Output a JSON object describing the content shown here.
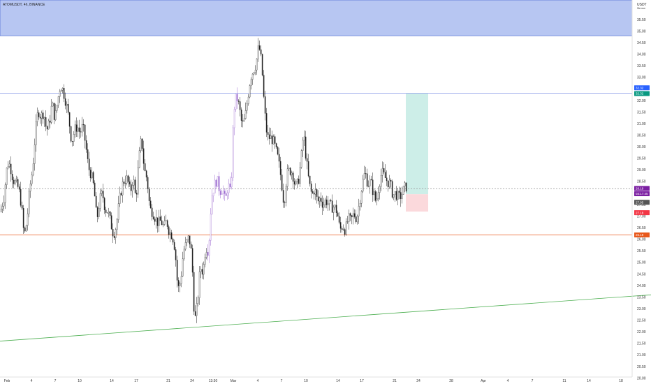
{
  "header": {
    "symbol": "ATOMUSDT, 4h, BINANCE",
    "currency": "USDT",
    "currency_note": "Ste.uso"
  },
  "chart_data": {
    "type": "candlestick",
    "title": "ATOMUSDT, 4h, BINANCE",
    "y_axis": {
      "currency": "USDT",
      "tick_labels": [
        "35.50",
        "35.00",
        "34.50",
        "34.00",
        "33.50",
        "33.00",
        "32.50",
        "32.00",
        "31.50",
        "31.00",
        "30.50",
        "30.00",
        "29.50",
        "29.00",
        "28.50",
        "28.00",
        "27.50",
        "27.00",
        "26.50",
        "26.00",
        "25.50",
        "25.00",
        "24.50",
        "24.00",
        "23.50",
        "23.00",
        "22.50",
        "22.00",
        "21.50",
        "21.00",
        "20.50",
        "20.00"
      ],
      "tick_values": [
        35.5,
        35.0,
        34.5,
        34.0,
        33.5,
        33.0,
        32.5,
        32.0,
        31.5,
        31.0,
        30.5,
        30.0,
        29.5,
        29.0,
        28.5,
        28.0,
        27.5,
        27.0,
        26.5,
        26.0,
        25.5,
        25.0,
        24.5,
        24.0,
        23.5,
        23.0,
        22.5,
        22.0,
        21.5,
        21.0,
        20.5,
        20.0
      ],
      "range": [
        19.7,
        36.2
      ]
    },
    "x_axis": {
      "tick_labels": [
        "Feb",
        "4",
        "7",
        "10",
        "14",
        "17",
        "21",
        "24",
        "13:30",
        "Mar",
        "4",
        "7",
        "10",
        "14",
        "17",
        "21",
        "24",
        "28",
        "Apr",
        "4",
        "7",
        "11",
        "14",
        "18"
      ],
      "range": [
        0,
        932
      ]
    },
    "zones": {
      "resistance_top": 34.8,
      "resistance_bottom": 36.2,
      "resistance_color": "#b7c6f2",
      "long_position": {
        "entry": 27.95,
        "take_profit": 32.3,
        "stop_loss": 27.2,
        "profit_color": "#cdeee8",
        "loss_color": "#fbd9dc"
      }
    },
    "horizontal_lines": [
      {
        "name": "blue-level",
        "value": 32.32,
        "color": "#8093e6"
      },
      {
        "name": "current-price-line",
        "value": 28.19,
        "color": "#a0a0a0",
        "dashed": true
      },
      {
        "name": "orange-support",
        "value": 26.19,
        "color": "#e8581b"
      }
    ],
    "trendline": {
      "name": "green-trendline",
      "from": [
        0,
        21.6
      ],
      "to": [
        932,
        23.6
      ],
      "color": "#4caf50"
    },
    "price_badges": [
      {
        "label": "32.32",
        "value": 32.55,
        "color": "#2962ff"
      },
      {
        "label": "32.32",
        "value": 32.3,
        "color": "#089981"
      },
      {
        "label": "28.19",
        "value": 28.2,
        "color": "#7b1fa2"
      },
      {
        "label": "03:17:45",
        "value": 27.97,
        "color": "#7b1fa2"
      },
      {
        "label": "27.95",
        "value": 27.6,
        "color": "#555555"
      },
      {
        "label": "27.18",
        "value": 27.15,
        "color": "#f23645"
      },
      {
        "label": "26.19",
        "value": 26.19,
        "color": "#e8581b"
      }
    ],
    "candle_color": "#222222",
    "candle_up_color": "#ffffff",
    "highlight_color": "#9c6bd0",
    "price_path": [
      [
        0,
        27.2
      ],
      [
        5,
        27.8
      ],
      [
        10,
        29.3
      ],
      [
        14,
        29.2
      ],
      [
        18,
        28.6
      ],
      [
        22,
        28.4
      ],
      [
        26,
        28.2
      ],
      [
        30,
        27.5
      ],
      [
        34,
        26.1
      ],
      [
        38,
        26.8
      ],
      [
        42,
        28.2
      ],
      [
        46,
        29.0
      ],
      [
        50,
        30.6
      ],
      [
        54,
        31.6
      ],
      [
        58,
        31.3
      ],
      [
        62,
        31.5
      ],
      [
        66,
        30.7
      ],
      [
        70,
        31.0
      ],
      [
        74,
        31.9
      ],
      [
        78,
        31.2
      ],
      [
        82,
        32.0
      ],
      [
        86,
        32.7
      ],
      [
        90,
        32.4
      ],
      [
        94,
        31.9
      ],
      [
        98,
        31.2
      ],
      [
        102,
        30.2
      ],
      [
        106,
        30.7
      ],
      [
        110,
        30.9
      ],
      [
        114,
        30.6
      ],
      [
        118,
        30.9
      ],
      [
        122,
        30.1
      ],
      [
        126,
        29.1
      ],
      [
        130,
        28.8
      ],
      [
        134,
        28.2
      ],
      [
        138,
        26.8
      ],
      [
        142,
        27.7
      ],
      [
        146,
        28.0
      ],
      [
        150,
        27.3
      ],
      [
        154,
        27.2
      ],
      [
        158,
        26.7
      ],
      [
        162,
        26.2
      ],
      [
        166,
        26.6
      ],
      [
        170,
        27.6
      ],
      [
        174,
        28.3
      ],
      [
        178,
        28.6
      ],
      [
        182,
        28.6
      ],
      [
        186,
        28.0
      ],
      [
        190,
        28.7
      ],
      [
        194,
        27.7
      ],
      [
        198,
        29.4
      ],
      [
        202,
        30.4
      ],
      [
        206,
        29.0
      ],
      [
        210,
        28.6
      ],
      [
        214,
        27.3
      ],
      [
        218,
        27.2
      ],
      [
        222,
        26.9
      ],
      [
        226,
        26.7
      ],
      [
        230,
        26.8
      ],
      [
        234,
        26.5
      ],
      [
        238,
        26.8
      ],
      [
        242,
        26.3
      ],
      [
        246,
        26.2
      ],
      [
        250,
        25.6
      ],
      [
        254,
        23.8
      ],
      [
        258,
        24.2
      ],
      [
        262,
        25.5
      ],
      [
        266,
        25.8
      ],
      [
        270,
        26.1
      ],
      [
        274,
        25.3
      ],
      [
        278,
        22.4
      ],
      [
        282,
        23.2
      ],
      [
        286,
        24.8
      ],
      [
        290,
        24.6
      ],
      [
        294,
        25.7
      ],
      [
        298,
        25.5
      ],
      [
        302,
        27.8
      ],
      [
        306,
        28.3
      ],
      [
        310,
        28.6
      ],
      [
        314,
        28.1
      ],
      [
        318,
        28.2
      ],
      [
        322,
        27.6
      ],
      [
        326,
        28.4
      ],
      [
        330,
        27.9
      ],
      [
        334,
        31.6
      ],
      [
        338,
        32.2
      ],
      [
        342,
        31.7
      ],
      [
        346,
        30.9
      ],
      [
        350,
        31.2
      ],
      [
        354,
        32.1
      ],
      [
        358,
        33.0
      ],
      [
        362,
        33.3
      ],
      [
        366,
        33.6
      ],
      [
        370,
        34.4
      ],
      [
        374,
        33.6
      ],
      [
        378,
        31.6
      ],
      [
        382,
        30.4
      ],
      [
        386,
        30.4
      ],
      [
        390,
        30.3
      ],
      [
        394,
        29.9
      ],
      [
        398,
        29.4
      ],
      [
        402,
        28.6
      ],
      [
        406,
        27.5
      ],
      [
        410,
        28.8
      ],
      [
        414,
        29.0
      ],
      [
        418,
        28.9
      ],
      [
        422,
        28.3
      ],
      [
        426,
        28.4
      ],
      [
        430,
        29.3
      ],
      [
        434,
        30.6
      ],
      [
        438,
        29.4
      ],
      [
        442,
        28.4
      ],
      [
        446,
        27.9
      ],
      [
        450,
        28.2
      ],
      [
        454,
        27.6
      ],
      [
        458,
        27.8
      ],
      [
        462,
        27.5
      ],
      [
        466,
        27.7
      ],
      [
        470,
        27.5
      ],
      [
        474,
        27.4
      ],
      [
        478,
        27.4
      ],
      [
        482,
        27.2
      ],
      [
        486,
        26.4
      ],
      [
        490,
        26.6
      ],
      [
        494,
        26.4
      ],
      [
        498,
        26.9
      ],
      [
        502,
        26.8
      ],
      [
        506,
        27.1
      ],
      [
        510,
        26.9
      ],
      [
        514,
        27.6
      ],
      [
        518,
        28.4
      ],
      [
        522,
        28.9
      ],
      [
        526,
        28.4
      ],
      [
        530,
        28.5
      ],
      [
        534,
        28.0
      ],
      [
        538,
        27.6
      ],
      [
        542,
        28.4
      ],
      [
        546,
        28.9
      ],
      [
        550,
        28.7
      ],
      [
        554,
        28.5
      ],
      [
        558,
        28.4
      ],
      [
        562,
        27.9
      ],
      [
        566,
        28.0
      ],
      [
        570,
        27.8
      ],
      [
        574,
        27.9
      ],
      [
        578,
        28.2
      ],
      [
        582,
        28.3
      ]
    ],
    "highlight_ranges": [
      [
        296,
        340
      ]
    ]
  }
}
